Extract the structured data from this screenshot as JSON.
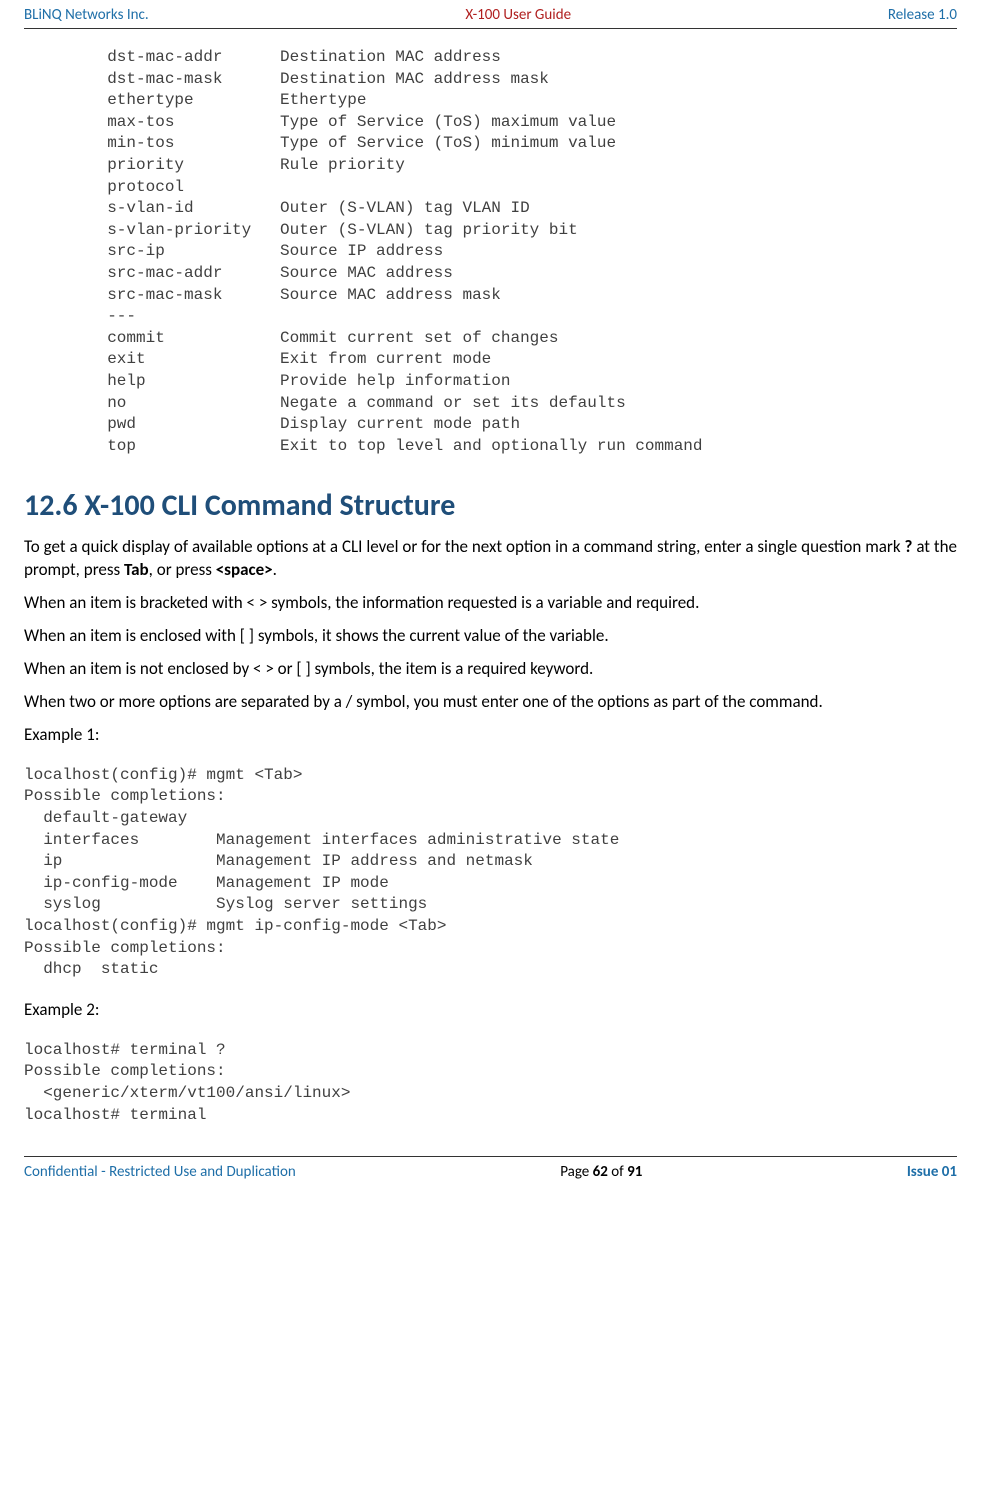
{
  "header": {
    "left": "BLiNQ Networks Inc.",
    "center": "X-100 User Guide",
    "right": "Release 1.0"
  },
  "code_block_1": "  dst-mac-addr      Destination MAC address\n  dst-mac-mask      Destination MAC address mask\n  ethertype         Ethertype\n  max-tos           Type of Service (ToS) maximum value\n  min-tos           Type of Service (ToS) minimum value\n  priority          Rule priority\n  protocol\n  s-vlan-id         Outer (S-VLAN) tag VLAN ID\n  s-vlan-priority   Outer (S-VLAN) tag priority bit\n  src-ip            Source IP address\n  src-mac-addr      Source MAC address\n  src-mac-mask      Source MAC address mask\n  ---\n  commit            Commit current set of changes\n  exit              Exit from current mode\n  help              Provide help information\n  no                Negate a command or set its defaults\n  pwd               Display current mode path\n  top               Exit to top level and optionally run command",
  "section": {
    "title": "12.6 X-100 CLI Command Structure"
  },
  "paragraphs": {
    "p1_a": "To get a quick display of available options at a CLI level or for the next option in a command string, enter a single question mark ",
    "p1_b": "?",
    "p1_c": " at the prompt, press ",
    "p1_d": "Tab",
    "p1_e": ", or press ",
    "p1_f": "<space>",
    "p1_g": ".",
    "p2": "When an item is bracketed with < > symbols, the information requested is a variable and required.",
    "p3": "When an item is enclosed with [ ] symbols, it shows the current value of the variable.",
    "p4": "When an item is not enclosed by < > or [ ] symbols, the item is a required keyword.",
    "p5": "When two or more options are separated by a / symbol, you must enter one of the options as part of the command.",
    "ex1_label": "Example 1:",
    "ex2_label": "Example 2:"
  },
  "code_block_2": "localhost(config)# mgmt <Tab>\nPossible completions:\n  default-gateway\n  interfaces        Management interfaces administrative state\n  ip                Management IP address and netmask\n  ip-config-mode    Management IP mode\n  syslog            Syslog server settings\nlocalhost(config)# mgmt ip-config-mode <Tab>\nPossible completions:\n  dhcp  static",
  "code_block_3": "localhost# terminal ?\nPossible completions:\n  <generic/xterm/vt100/ansi/linux>\nlocalhost# terminal",
  "footer": {
    "left": "Confidential - Restricted Use and Duplication",
    "center_a": "Page ",
    "center_b": "62",
    "center_c": " of ",
    "center_d": "91",
    "right": "Issue 01"
  }
}
